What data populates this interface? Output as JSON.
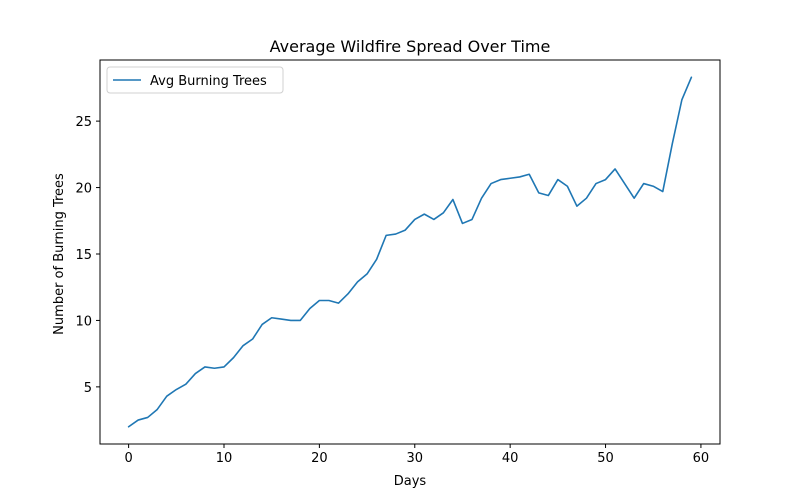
{
  "chart_data": {
    "type": "line",
    "title": "Average Wildfire Spread Over Time",
    "xlabel": "Days",
    "ylabel": "Number of Burning Trees",
    "xlim": [
      -3,
      62
    ],
    "ylim": [
      0.7,
      29.6
    ],
    "xticks": [
      0,
      10,
      20,
      30,
      40,
      50,
      60
    ],
    "yticks": [
      5,
      10,
      15,
      20,
      25
    ],
    "grid": false,
    "legend_position": "top-left",
    "series": [
      {
        "name": "Avg Burning Trees",
        "color": "#1f77b4",
        "x": [
          0,
          1,
          2,
          3,
          4,
          5,
          6,
          7,
          8,
          9,
          10,
          11,
          12,
          13,
          14,
          15,
          16,
          17,
          18,
          19,
          20,
          21,
          22,
          23,
          24,
          25,
          26,
          27,
          28,
          29,
          30,
          31,
          32,
          33,
          34,
          35,
          36,
          37,
          38,
          39,
          40,
          41,
          42,
          43,
          44,
          45,
          46,
          47,
          48,
          49,
          50,
          51,
          52,
          53,
          54,
          55,
          56,
          57,
          58,
          59
        ],
        "values": [
          2.0,
          2.5,
          2.7,
          3.3,
          4.3,
          4.8,
          5.2,
          6.0,
          6.5,
          6.4,
          6.5,
          7.2,
          8.1,
          8.6,
          9.7,
          10.2,
          10.1,
          10.0,
          10.0,
          10.9,
          11.5,
          11.5,
          11.3,
          12.0,
          12.9,
          13.5,
          14.6,
          16.4,
          16.5,
          16.8,
          17.6,
          18.0,
          17.6,
          18.1,
          19.1,
          17.3,
          17.6,
          19.2,
          20.3,
          20.6,
          20.7,
          20.8,
          21.0,
          19.6,
          19.4,
          20.6,
          20.1,
          18.6,
          19.2,
          20.3,
          20.6,
          21.4,
          20.3,
          19.2,
          20.3,
          20.1,
          19.7,
          23.3,
          26.6,
          28.3
        ]
      }
    ]
  }
}
